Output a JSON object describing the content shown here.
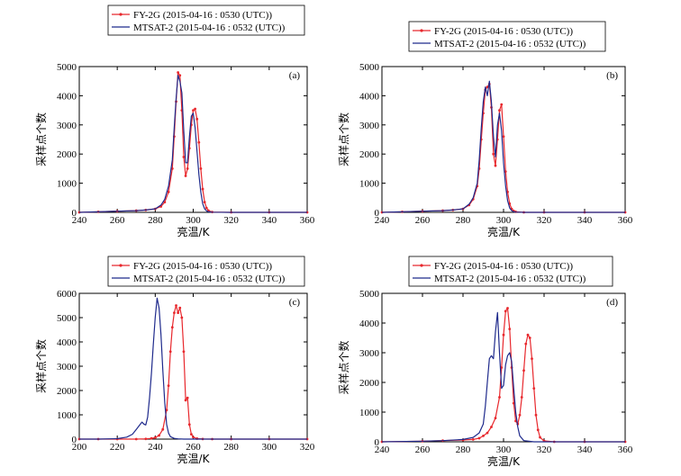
{
  "colors": {
    "fy2g": "#e8282d",
    "mtsat2": "#1f2a8c"
  },
  "chart_data": [
    {
      "type": "line",
      "panel_label": "(a)",
      "xlabel": "亮温/K",
      "ylabel": "采样点个数",
      "xlim": [
        240,
        360
      ],
      "ylim": [
        0,
        5000
      ],
      "xticks": [
        240,
        260,
        280,
        300,
        320,
        340,
        360
      ],
      "yticks": [
        0,
        1000,
        2000,
        3000,
        4000,
        5000
      ],
      "series": [
        {
          "name": "FY-2G (2015-04-16 : 0530 (UTC))",
          "color": "#e8282d",
          "x": [
            240,
            250,
            260,
            270,
            275,
            280,
            283,
            285,
            287,
            289,
            290,
            291,
            292,
            293,
            294,
            295,
            296,
            297,
            298,
            299,
            300,
            301,
            302,
            303,
            304,
            305,
            306,
            307,
            308,
            310,
            320,
            340,
            360
          ],
          "y": [
            0,
            20,
            40,
            60,
            80,
            120,
            200,
            350,
            700,
            1500,
            2600,
            3800,
            4800,
            4700,
            3500,
            1900,
            1250,
            1500,
            2200,
            3000,
            3500,
            3550,
            3200,
            2400,
            1500,
            800,
            350,
            150,
            60,
            10,
            0,
            0,
            0
          ]
        },
        {
          "name": "MTSAT-2 (2015-04-16 : 0532 (UTC))",
          "color": "#1f2a8c",
          "x": [
            240,
            250,
            260,
            270,
            275,
            280,
            283,
            285,
            287,
            289,
            290,
            291,
            292,
            293,
            294,
            295,
            296,
            297,
            298,
            299,
            300,
            301,
            302,
            303,
            304,
            305,
            306,
            307,
            308,
            310,
            320,
            340,
            360
          ],
          "y": [
            0,
            20,
            40,
            60,
            80,
            120,
            250,
            450,
            900,
            1800,
            2900,
            3900,
            4700,
            4500,
            4100,
            2800,
            1700,
            1700,
            2600,
            3300,
            3400,
            2900,
            2100,
            1300,
            700,
            300,
            120,
            50,
            20,
            5,
            0,
            0,
            0
          ]
        }
      ]
    },
    {
      "type": "line",
      "panel_label": "(b)",
      "xlabel": "亮温/K",
      "ylabel": "采样点个数",
      "xlim": [
        240,
        360
      ],
      "ylim": [
        0,
        5000
      ],
      "xticks": [
        240,
        260,
        280,
        300,
        320,
        340,
        360
      ],
      "yticks": [
        0,
        1000,
        2000,
        3000,
        4000,
        5000
      ],
      "series": [
        {
          "name": "FY-2G (2015-04-16 : 0530 (UTC))",
          "color": "#e8282d",
          "x": [
            240,
            250,
            260,
            270,
            275,
            280,
            283,
            285,
            287,
            288,
            289,
            290,
            291,
            292,
            293,
            294,
            295,
            296,
            297,
            298,
            299,
            300,
            301,
            302,
            303,
            304,
            305,
            306,
            310,
            320,
            340,
            360
          ],
          "y": [
            0,
            20,
            40,
            60,
            80,
            120,
            250,
            450,
            900,
            1500,
            2500,
            3400,
            4200,
            4300,
            4400,
            3600,
            2000,
            1600,
            2500,
            3500,
            3700,
            2600,
            1400,
            700,
            300,
            120,
            50,
            20,
            0,
            0,
            0,
            0
          ]
        },
        {
          "name": "MTSAT-2 (2015-04-16 : 0532 (UTC))",
          "color": "#1f2a8c",
          "x": [
            240,
            250,
            260,
            270,
            275,
            280,
            283,
            285,
            287,
            288,
            289,
            290,
            291,
            292,
            293,
            294,
            295,
            296,
            297,
            298,
            299,
            300,
            301,
            302,
            303,
            304,
            305,
            306,
            310,
            320,
            340,
            360
          ],
          "y": [
            0,
            20,
            40,
            60,
            80,
            120,
            280,
            500,
            1000,
            1800,
            2900,
            3800,
            4300,
            4000,
            4500,
            3800,
            2600,
            1900,
            3000,
            3400,
            2800,
            1700,
            900,
            400,
            150,
            60,
            20,
            10,
            0,
            0,
            0,
            0
          ]
        }
      ]
    },
    {
      "type": "line",
      "panel_label": "(c)",
      "xlabel": "亮温/K",
      "ylabel": "采样点个数",
      "xlim": [
        200,
        320
      ],
      "ylim": [
        0,
        6000
      ],
      "xticks": [
        200,
        220,
        240,
        260,
        280,
        300,
        320
      ],
      "yticks": [
        0,
        1000,
        2000,
        3000,
        4000,
        5000,
        6000
      ],
      "series": [
        {
          "name": "FY-2G (2015-04-16 : 0530 (UTC))",
          "color": "#e8282d",
          "x": [
            200,
            210,
            220,
            230,
            235,
            238,
            240,
            242,
            244,
            246,
            247,
            248,
            249,
            250,
            251,
            252,
            253,
            254,
            255,
            256,
            257,
            258,
            259,
            260,
            262,
            265,
            270,
            280,
            300,
            320
          ],
          "y": [
            0,
            0,
            0,
            0,
            10,
            30,
            60,
            150,
            400,
            1200,
            2200,
            3600,
            4600,
            5200,
            5500,
            5200,
            5400,
            5000,
            3600,
            1600,
            1700,
            600,
            200,
            80,
            20,
            5,
            0,
            0,
            0,
            0
          ]
        },
        {
          "name": "MTSAT-2 (2015-04-16 : 0532 (UTC))",
          "color": "#1f2a8c",
          "x": [
            200,
            210,
            220,
            225,
            228,
            230,
            232,
            233,
            234,
            235,
            236,
            237,
            238,
            239,
            240,
            241,
            242,
            243,
            244,
            245,
            246,
            247,
            248,
            250,
            252,
            255,
            260,
            270,
            290,
            320
          ],
          "y": [
            0,
            0,
            20,
            80,
            200,
            400,
            600,
            700,
            620,
            580,
            900,
            1700,
            2700,
            3900,
            5000,
            5800,
            5400,
            4300,
            2800,
            1500,
            600,
            250,
            100,
            30,
            10,
            0,
            0,
            0,
            0,
            0
          ]
        }
      ]
    },
    {
      "type": "line",
      "panel_label": "(d)",
      "xlabel": "亮温/K",
      "ylabel": "采样点个数",
      "xlim": [
        240,
        360
      ],
      "ylim": [
        0,
        5000
      ],
      "xticks": [
        240,
        260,
        280,
        300,
        320,
        340,
        360
      ],
      "yticks": [
        0,
        1000,
        2000,
        3000,
        4000,
        5000
      ],
      "series": [
        {
          "name": "FY-2G (2015-04-16 : 0530 (UTC))",
          "color": "#e8282d",
          "x": [
            240,
            260,
            270,
            280,
            285,
            288,
            290,
            292,
            294,
            296,
            298,
            299,
            300,
            301,
            302,
            303,
            304,
            305,
            306,
            307,
            308,
            309,
            310,
            311,
            312,
            313,
            314,
            315,
            316,
            317,
            318,
            320,
            325,
            340,
            360
          ],
          "y": [
            0,
            20,
            40,
            60,
            80,
            120,
            200,
            300,
            500,
            800,
            1500,
            2500,
            3600,
            4400,
            4500,
            3800,
            2500,
            1300,
            700,
            600,
            900,
            1500,
            2400,
            3300,
            3600,
            3500,
            2800,
            1800,
            900,
            400,
            150,
            30,
            0,
            0,
            0
          ]
        },
        {
          "name": "MTSAT-2 (2015-04-16 : 0532 (UTC))",
          "color": "#1f2a8c",
          "x": [
            240,
            260,
            270,
            280,
            285,
            288,
            290,
            291,
            292,
            293,
            294,
            295,
            296,
            297,
            298,
            299,
            300,
            301,
            302,
            303,
            304,
            305,
            306,
            307,
            308,
            310,
            315,
            320,
            340,
            360
          ],
          "y": [
            0,
            20,
            40,
            80,
            150,
            300,
            600,
            1200,
            2000,
            2800,
            2900,
            2800,
            3700,
            4350,
            3000,
            1800,
            1900,
            2600,
            2900,
            3000,
            2700,
            1800,
            1000,
            500,
            200,
            40,
            0,
            0,
            0,
            0
          ]
        }
      ]
    }
  ]
}
